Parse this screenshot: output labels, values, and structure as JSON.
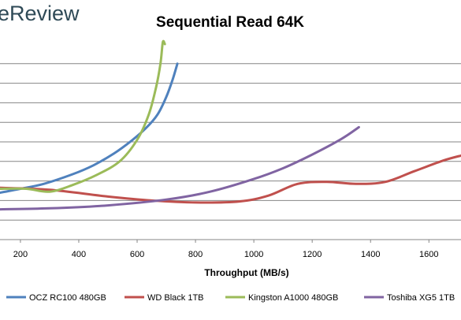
{
  "brand": {
    "text": "eReview",
    "color": "#2f4a57"
  },
  "chart_data": {
    "type": "line",
    "title": "Sequential Read 64K",
    "xlabel": "Throughput (MB/s)",
    "ylabel": "",
    "xlim": [
      130,
      1710
    ],
    "ylim": [
      0,
      10
    ],
    "x_ticks": [
      200,
      400,
      600,
      800,
      1000,
      1200,
      1400,
      1600
    ],
    "y_gridlines": [
      1,
      2,
      3,
      4,
      5,
      6,
      7,
      8,
      9
    ],
    "grid": "horizontal",
    "legend_position": "bottom",
    "series": [
      {
        "name": "OCZ RC100 480GB",
        "color": "#4f81bd",
        "points": [
          [
            130,
            2.4
          ],
          [
            200,
            2.6
          ],
          [
            280,
            2.85
          ],
          [
            380,
            3.35
          ],
          [
            450,
            3.8
          ],
          [
            520,
            4.4
          ],
          [
            580,
            5.05
          ],
          [
            630,
            5.7
          ],
          [
            670,
            6.4
          ],
          [
            700,
            7.3
          ],
          [
            722,
            8.2
          ],
          [
            738,
            9.0
          ]
        ]
      },
      {
        "name": "WD Black 1TB",
        "color": "#c0504d",
        "points": [
          [
            130,
            2.65
          ],
          [
            300,
            2.55
          ],
          [
            500,
            2.2
          ],
          [
            650,
            2.0
          ],
          [
            800,
            1.9
          ],
          [
            950,
            1.95
          ],
          [
            1050,
            2.25
          ],
          [
            1150,
            2.85
          ],
          [
            1250,
            2.95
          ],
          [
            1350,
            2.85
          ],
          [
            1450,
            2.95
          ],
          [
            1550,
            3.5
          ],
          [
            1650,
            4.05
          ],
          [
            1710,
            4.3
          ]
        ]
      },
      {
        "name": "Kingston A1000 480GB",
        "color": "#9bbb59",
        "points": [
          [
            130,
            2.6
          ],
          [
            220,
            2.6
          ],
          [
            300,
            2.45
          ],
          [
            380,
            2.8
          ],
          [
            460,
            3.3
          ],
          [
            540,
            4.0
          ],
          [
            600,
            5.1
          ],
          [
            640,
            6.4
          ],
          [
            665,
            7.8
          ],
          [
            680,
            9.0
          ],
          [
            688,
            10.1
          ],
          [
            695,
            10.0
          ]
        ]
      },
      {
        "name": "Toshiba XG5 1TB",
        "color": "#8064a2",
        "points": [
          [
            130,
            1.55
          ],
          [
            300,
            1.6
          ],
          [
            500,
            1.75
          ],
          [
            700,
            2.05
          ],
          [
            850,
            2.45
          ],
          [
            1000,
            3.1
          ],
          [
            1100,
            3.65
          ],
          [
            1200,
            4.35
          ],
          [
            1300,
            5.15
          ],
          [
            1360,
            5.75
          ]
        ]
      }
    ]
  }
}
